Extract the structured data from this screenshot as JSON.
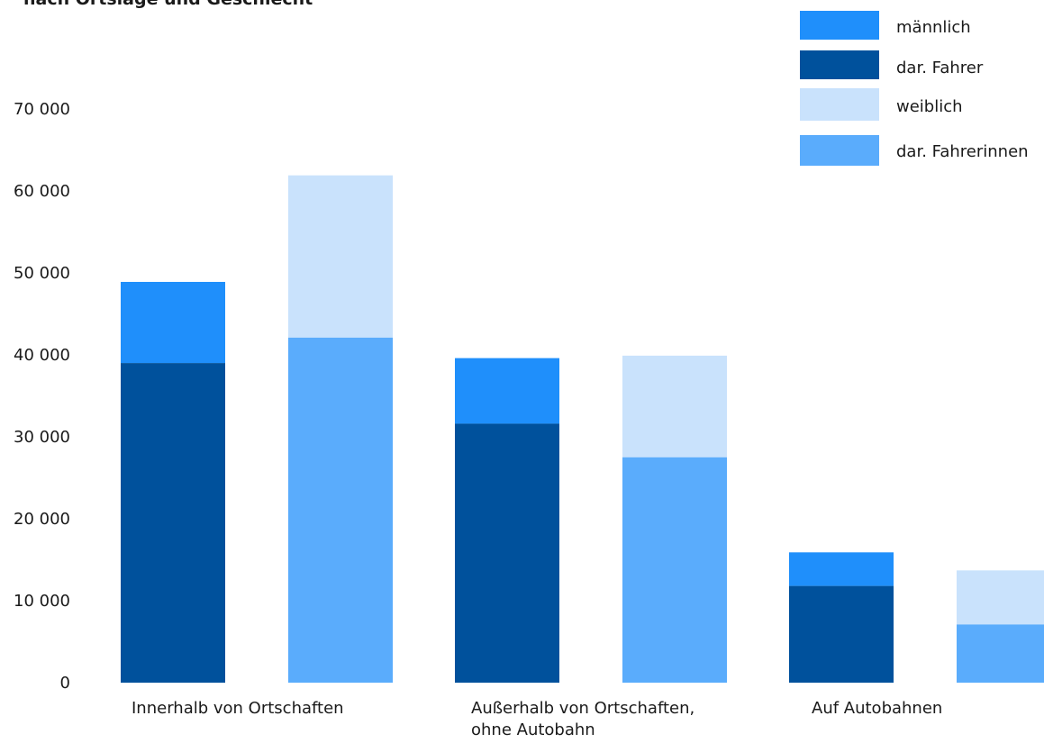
{
  "title": "nach Ortslage und Geschlecht",
  "colors": {
    "male": "#1f8ffb",
    "male_driver": "#00519c",
    "female": "#c9e2fc",
    "female_driver": "#5aacfc"
  },
  "chart_data": {
    "type": "bar",
    "title": "nach Ortslage und Geschlecht",
    "xlabel": "",
    "ylabel": "",
    "ylim": [
      0,
      70000
    ],
    "yticks": [
      0,
      10000,
      20000,
      30000,
      40000,
      50000,
      60000,
      70000
    ],
    "ytick_labels": [
      "0",
      "10 000",
      "20 000",
      "30 000",
      "40 000",
      "50 000",
      "60 000",
      "70 000"
    ],
    "grid": false,
    "legend_position": "top-right",
    "categories": [
      [
        "Innerhalb von Ortschaften"
      ],
      [
        "Außerhalb von Ortschaften,",
        "ohne Autobahn"
      ],
      [
        "Auf Autobahnen"
      ]
    ],
    "series": [
      {
        "name": "männlich",
        "color_key": "male",
        "values": [
          48900,
          39600,
          15900
        ]
      },
      {
        "name": "dar. Fahrer",
        "color_key": "male_driver",
        "values": [
          39000,
          31600,
          11800
        ]
      },
      {
        "name": "weiblich",
        "color_key": "female",
        "values": [
          61900,
          39900,
          13700
        ]
      },
      {
        "name": "dar. Fahrerinnen",
        "color_key": "female_driver",
        "values": [
          42100,
          27500,
          7100
        ]
      }
    ]
  }
}
